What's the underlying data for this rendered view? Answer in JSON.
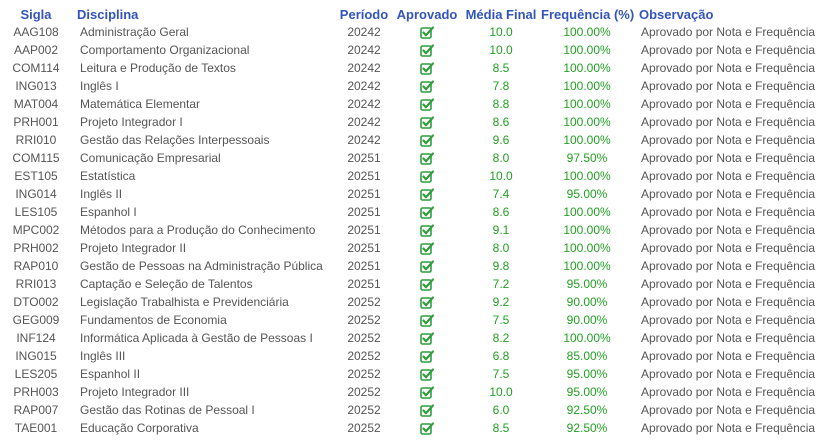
{
  "columns": [
    "Sigla",
    "Disciplina",
    "Período",
    "Aprovado",
    "Média Final",
    "Frequência (%)",
    "Observação"
  ],
  "approved_icon": "checkbox-checked-icon",
  "colors": {
    "header": "#3355bb",
    "grade": "#22a022",
    "icon": "#2e9e3c"
  },
  "rows": [
    {
      "sigla": "AAG108",
      "disciplina": "Administração Geral",
      "periodo": "20242",
      "media": "10.0",
      "frequencia": "100.00%",
      "observacao": "Aprovado por Nota e Frequência"
    },
    {
      "sigla": "AAP002",
      "disciplina": "Comportamento Organizacional",
      "periodo": "20242",
      "media": "10.0",
      "frequencia": "100.00%",
      "observacao": "Aprovado por Nota e Frequência"
    },
    {
      "sigla": "COM114",
      "disciplina": "Leitura e Produção de Textos",
      "periodo": "20242",
      "media": "8.5",
      "frequencia": "100.00%",
      "observacao": "Aprovado por Nota e Frequência"
    },
    {
      "sigla": "ING013",
      "disciplina": "Inglês I",
      "periodo": "20242",
      "media": "7.8",
      "frequencia": "100.00%",
      "observacao": "Aprovado por Nota e Frequência"
    },
    {
      "sigla": "MAT004",
      "disciplina": "Matemática Elementar",
      "periodo": "20242",
      "media": "8.8",
      "frequencia": "100.00%",
      "observacao": "Aprovado por Nota e Frequência"
    },
    {
      "sigla": "PRH001",
      "disciplina": "Projeto Integrador I",
      "periodo": "20242",
      "media": "8.6",
      "frequencia": "100.00%",
      "observacao": "Aprovado por Nota e Frequência"
    },
    {
      "sigla": "RRI010",
      "disciplina": "Gestão das Relações Interpessoais",
      "periodo": "20242",
      "media": "9.6",
      "frequencia": "100.00%",
      "observacao": "Aprovado por Nota e Frequência"
    },
    {
      "sigla": "COM115",
      "disciplina": "Comunicação Empresarial",
      "periodo": "20251",
      "media": "8.0",
      "frequencia": "97.50%",
      "observacao": "Aprovado por Nota e Frequência"
    },
    {
      "sigla": "EST105",
      "disciplina": "Estatística",
      "periodo": "20251",
      "media": "10.0",
      "frequencia": "100.00%",
      "observacao": "Aprovado por Nota e Frequência"
    },
    {
      "sigla": "ING014",
      "disciplina": "Inglês II",
      "periodo": "20251",
      "media": "7.4",
      "frequencia": "95.00%",
      "observacao": "Aprovado por Nota e Frequência"
    },
    {
      "sigla": "LES105",
      "disciplina": "Espanhol I",
      "periodo": "20251",
      "media": "8.6",
      "frequencia": "100.00%",
      "observacao": "Aprovado por Nota e Frequência"
    },
    {
      "sigla": "MPC002",
      "disciplina": "Métodos para a Produção do Conhecimento",
      "periodo": "20251",
      "media": "9.1",
      "frequencia": "100.00%",
      "observacao": "Aprovado por Nota e Frequência"
    },
    {
      "sigla": "PRH002",
      "disciplina": "Projeto Integrador II",
      "periodo": "20251",
      "media": "8.0",
      "frequencia": "100.00%",
      "observacao": "Aprovado por Nota e Frequência"
    },
    {
      "sigla": "RAP010",
      "disciplina": "Gestão de Pessoas na Administração Pública",
      "periodo": "20251",
      "media": "9.8",
      "frequencia": "100.00%",
      "observacao": "Aprovado por Nota e Frequência"
    },
    {
      "sigla": "RRI013",
      "disciplina": "Captação e Seleção de Talentos",
      "periodo": "20251",
      "media": "7.2",
      "frequencia": "95.00%",
      "observacao": "Aprovado por Nota e Frequência"
    },
    {
      "sigla": "DTO002",
      "disciplina": "Legislação Trabalhista e Previdenciária",
      "periodo": "20252",
      "media": "9.2",
      "frequencia": "90.00%",
      "observacao": "Aprovado por Nota e Frequência"
    },
    {
      "sigla": "GEG009",
      "disciplina": "Fundamentos de Economia",
      "periodo": "20252",
      "media": "7.5",
      "frequencia": "90.00%",
      "observacao": "Aprovado por Nota e Frequência"
    },
    {
      "sigla": "INF124",
      "disciplina": "Informática Aplicada à Gestão de Pessoas I",
      "periodo": "20252",
      "media": "8.2",
      "frequencia": "100.00%",
      "observacao": "Aprovado por Nota e Frequência"
    },
    {
      "sigla": "ING015",
      "disciplina": "Inglês III",
      "periodo": "20252",
      "media": "6.8",
      "frequencia": "85.00%",
      "observacao": "Aprovado por Nota e Frequência"
    },
    {
      "sigla": "LES205",
      "disciplina": "Espanhol II",
      "periodo": "20252",
      "media": "7.5",
      "frequencia": "95.00%",
      "observacao": "Aprovado por Nota e Frequência"
    },
    {
      "sigla": "PRH003",
      "disciplina": "Projeto Integrador III",
      "periodo": "20252",
      "media": "10.0",
      "frequencia": "95.00%",
      "observacao": "Aprovado por Nota e Frequência"
    },
    {
      "sigla": "RAP007",
      "disciplina": "Gestão das Rotinas de Pessoal I",
      "periodo": "20252",
      "media": "6.0",
      "frequencia": "92.50%",
      "observacao": "Aprovado por Nota e Frequência"
    },
    {
      "sigla": "TAE001",
      "disciplina": "Educação Corporativa",
      "periodo": "20252",
      "media": "8.5",
      "frequencia": "92.50%",
      "observacao": "Aprovado por Nota e Frequência"
    }
  ]
}
